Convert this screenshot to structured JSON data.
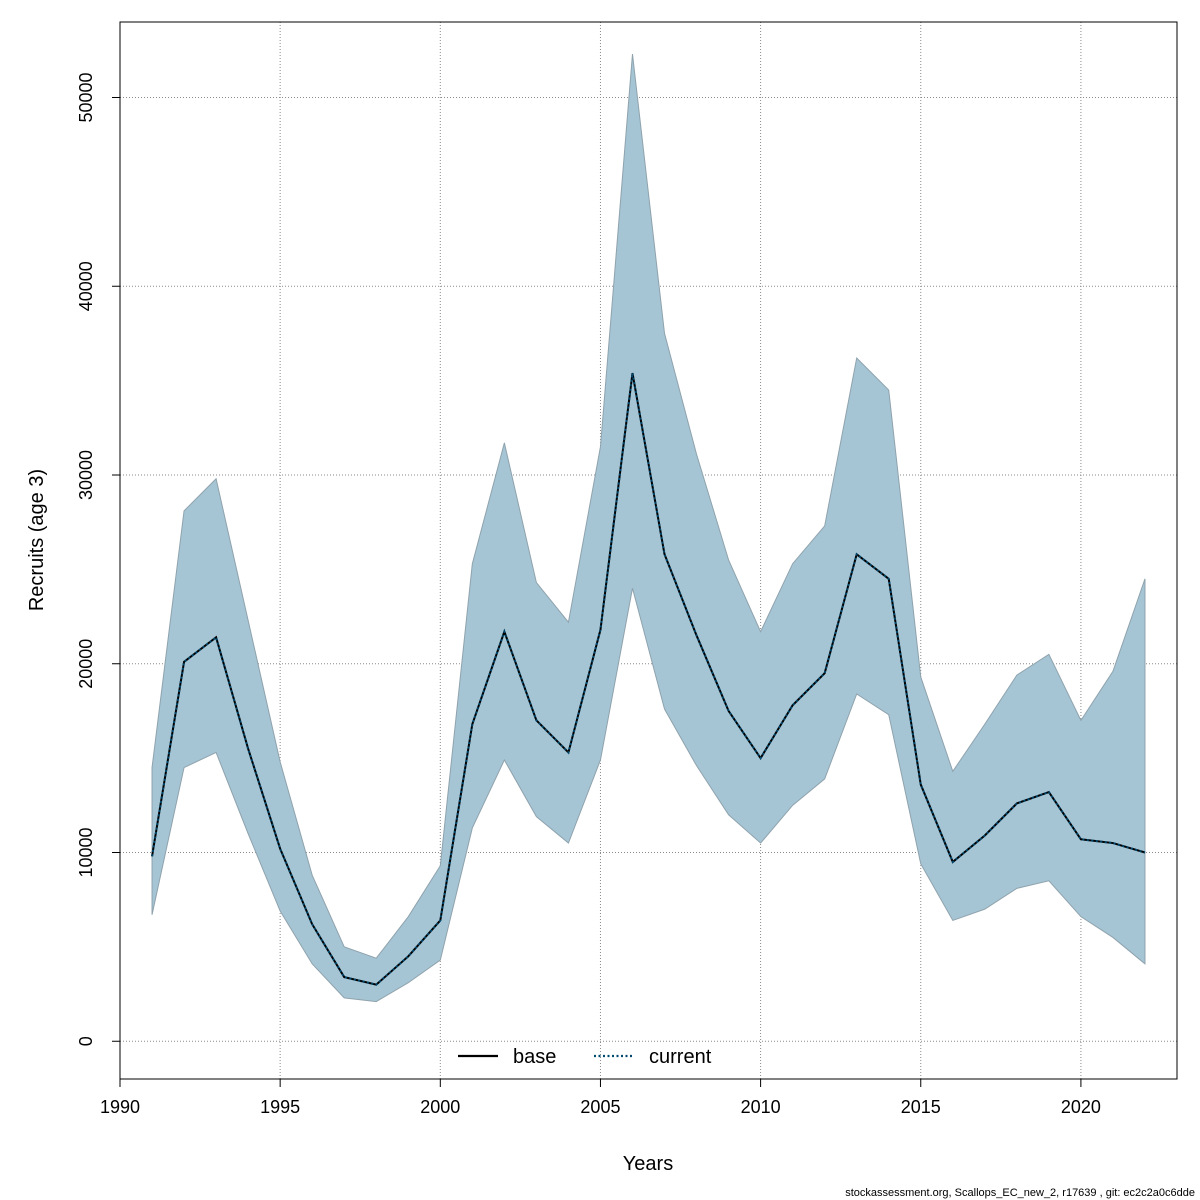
{
  "chart_data": {
    "type": "area",
    "xlabel": "Years",
    "ylabel": "Recruits (age 3)",
    "xlim": [
      1990,
      2023
    ],
    "ylim": [
      -2000,
      54000
    ],
    "xticks": [
      1990,
      1995,
      2000,
      2005,
      2010,
      2015,
      2020
    ],
    "yticks": [
      0,
      10000,
      20000,
      30000,
      40000,
      50000
    ],
    "grid": true,
    "legend_position": "bottom-center",
    "x": [
      1991,
      1992,
      1993,
      1994,
      1995,
      1996,
      1997,
      1998,
      1999,
      2000,
      2001,
      2002,
      2003,
      2004,
      2005,
      2006,
      2007,
      2008,
      2009,
      2010,
      2011,
      2012,
      2013,
      2014,
      2015,
      2016,
      2017,
      2018,
      2019,
      2020,
      2021,
      2022
    ],
    "band": {
      "color": "#a5c4d4",
      "upper": [
        14500,
        28100,
        29800,
        22300,
        14800,
        8800,
        5000,
        4400,
        6600,
        9300,
        25300,
        31700,
        24300,
        22200,
        31500,
        52300,
        37500,
        31100,
        25500,
        21700,
        25300,
        27300,
        36200,
        34500,
        19300,
        14300,
        16800,
        19400,
        20500,
        17000,
        19600,
        24500
      ],
      "lower": [
        6700,
        14500,
        15300,
        11000,
        6900,
        4100,
        2300,
        2100,
        3100,
        4300,
        11300,
        14900,
        11900,
        10500,
        14900,
        24000,
        17600,
        14600,
        12000,
        10500,
        12500,
        13900,
        18400,
        17300,
        9400,
        6400,
        7000,
        8100,
        8500,
        6600,
        5500,
        4100
      ]
    },
    "series": [
      {
        "name": "base",
        "color": "#000000",
        "style": "solid",
        "values": [
          9800,
          20100,
          21400,
          15500,
          10200,
          6200,
          3400,
          3000,
          4500,
          6400,
          16800,
          21700,
          17000,
          15300,
          21800,
          35400,
          25800,
          21500,
          17500,
          15000,
          17800,
          19500,
          25800,
          24500,
          13600,
          9500,
          10900,
          12600,
          13200,
          10700,
          10500,
          10000
        ]
      },
      {
        "name": "current",
        "color": "#004a70",
        "style": "dotted",
        "values": [
          9800,
          20100,
          21400,
          15500,
          10200,
          6200,
          3400,
          3000,
          4500,
          6400,
          16800,
          21700,
          17000,
          15300,
          21800,
          35400,
          25800,
          21500,
          17500,
          15000,
          17800,
          19500,
          25800,
          24500,
          13600,
          9500,
          10900,
          12600,
          13200,
          10700,
          10500,
          10000
        ]
      }
    ]
  },
  "footer": {
    "text": "stockassessment.org, Scallops_EC_new_2, r17639 , git: ec2c2a0c6dde"
  }
}
